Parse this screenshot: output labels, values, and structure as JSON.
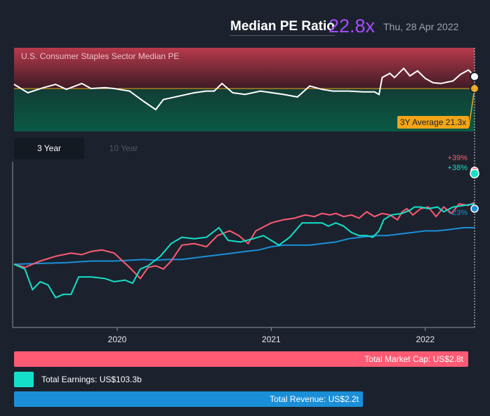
{
  "header": {
    "title": "Median PE Ratio",
    "value": "22.8x",
    "date": "Thu, 28 Apr 2022"
  },
  "pe_panel": {
    "sector_label": "U.S. Consumer Staples Sector Median PE",
    "average_label": "3Y Average 21.3x"
  },
  "tabs": {
    "active": "3 Year",
    "inactive": "10 Year"
  },
  "colors": {
    "market_cap": "#ff5a73",
    "earnings": "#14e0c9",
    "revenue": "#1a8fd8",
    "pe_line": "#ffffff",
    "average": "#f2a516",
    "accent": "#a64dff"
  },
  "chart_data": [
    {
      "type": "line",
      "title": "Median PE Ratio",
      "series": [
        {
          "name": "U.S. Consumer Staples Sector Median PE",
          "points": [
            [
              2019.33,
              21.8
            ],
            [
              2019.42,
              20.8
            ],
            [
              2019.52,
              21.4
            ],
            [
              2019.6,
              21.8
            ],
            [
              2019.67,
              21.2
            ],
            [
              2019.77,
              21.9
            ],
            [
              2019.83,
              21.3
            ],
            [
              2019.92,
              21.4
            ],
            [
              2019.98,
              21.3
            ],
            [
              2020.08,
              21.0
            ],
            [
              2020.17,
              19.8
            ],
            [
              2020.25,
              18.8
            ],
            [
              2020.3,
              20.0
            ],
            [
              2020.4,
              20.4
            ],
            [
              2020.5,
              20.8
            ],
            [
              2020.58,
              21.0
            ],
            [
              2020.63,
              21.0
            ],
            [
              2020.68,
              21.9
            ],
            [
              2020.75,
              20.8
            ],
            [
              2020.83,
              20.6
            ],
            [
              2020.93,
              21.0
            ],
            [
              2021.08,
              20.6
            ],
            [
              2021.17,
              20.3
            ],
            [
              2021.25,
              21.6
            ],
            [
              2021.33,
              21.2
            ],
            [
              2021.4,
              21.0
            ],
            [
              2021.5,
              21.0
            ],
            [
              2021.6,
              20.9
            ],
            [
              2021.67,
              20.9
            ],
            [
              2021.7,
              20.6
            ],
            [
              2021.72,
              22.6
            ],
            [
              2021.77,
              23.1
            ],
            [
              2021.8,
              22.6
            ],
            [
              2021.86,
              23.7
            ],
            [
              2021.9,
              22.8
            ],
            [
              2021.95,
              23.4
            ],
            [
              2022.0,
              22.5
            ],
            [
              2022.05,
              22.0
            ],
            [
              2022.1,
              21.9
            ],
            [
              2022.18,
              22.2
            ],
            [
              2022.23,
              23.0
            ],
            [
              2022.28,
              23.5
            ],
            [
              2022.32,
              22.8
            ]
          ]
        },
        {
          "name": "3Y Average",
          "value": 21.3
        }
      ]
    },
    {
      "type": "line",
      "x_ticks": [
        "2020",
        "2021",
        "2022"
      ],
      "ylabel": "",
      "series": [
        {
          "name": "Total Market Cap",
          "end_label": "+39%",
          "points": [
            [
              2019.33,
              0
            ],
            [
              2019.4,
              -2
            ],
            [
              2019.5,
              2
            ],
            [
              2019.6,
              5
            ],
            [
              2019.7,
              7
            ],
            [
              2019.77,
              6
            ],
            [
              2019.83,
              8
            ],
            [
              2019.9,
              9
            ],
            [
              2019.98,
              7
            ],
            [
              2020.08,
              -2
            ],
            [
              2020.15,
              -9
            ],
            [
              2020.2,
              -2
            ],
            [
              2020.25,
              -1
            ],
            [
              2020.3,
              -3
            ],
            [
              2020.35,
              2
            ],
            [
              2020.42,
              12
            ],
            [
              2020.5,
              13
            ],
            [
              2020.58,
              11
            ],
            [
              2020.65,
              18
            ],
            [
              2020.73,
              21
            ],
            [
              2020.79,
              18
            ],
            [
              2020.85,
              13
            ],
            [
              2020.9,
              21
            ],
            [
              2021.0,
              26
            ],
            [
              2021.08,
              28
            ],
            [
              2021.15,
              29
            ],
            [
              2021.22,
              31
            ],
            [
              2021.28,
              30
            ],
            [
              2021.33,
              32
            ],
            [
              2021.38,
              31
            ],
            [
              2021.42,
              32
            ],
            [
              2021.47,
              30
            ],
            [
              2021.52,
              31
            ],
            [
              2021.57,
              29
            ],
            [
              2021.62,
              33
            ],
            [
              2021.67,
              30
            ],
            [
              2021.72,
              32
            ],
            [
              2021.77,
              31
            ],
            [
              2021.82,
              28
            ],
            [
              2021.85,
              33
            ],
            [
              2021.88,
              35
            ],
            [
              2021.92,
              31
            ],
            [
              2021.97,
              35
            ],
            [
              2022.02,
              36
            ],
            [
              2022.07,
              30
            ],
            [
              2022.12,
              36
            ],
            [
              2022.17,
              32
            ],
            [
              2022.22,
              38
            ],
            [
              2022.28,
              37
            ],
            [
              2022.32,
              39
            ]
          ]
        },
        {
          "name": "Total Earnings",
          "end_label": "+38%",
          "points": [
            [
              2019.33,
              0
            ],
            [
              2019.4,
              -3
            ],
            [
              2019.45,
              -16
            ],
            [
              2019.5,
              -11
            ],
            [
              2019.55,
              -13
            ],
            [
              2019.6,
              -21
            ],
            [
              2019.65,
              -19
            ],
            [
              2019.7,
              -19
            ],
            [
              2019.75,
              -8
            ],
            [
              2019.83,
              -8
            ],
            [
              2019.92,
              -9
            ],
            [
              2019.98,
              -11
            ],
            [
              2020.05,
              -10
            ],
            [
              2020.1,
              -12
            ],
            [
              2020.15,
              -3
            ],
            [
              2020.2,
              -1
            ],
            [
              2020.28,
              5
            ],
            [
              2020.35,
              13
            ],
            [
              2020.42,
              17
            ],
            [
              2020.5,
              16
            ],
            [
              2020.58,
              17
            ],
            [
              2020.66,
              23
            ],
            [
              2020.72,
              15
            ],
            [
              2020.8,
              14
            ],
            [
              2020.88,
              16
            ],
            [
              2020.95,
              18
            ],
            [
              2021.0,
              15
            ],
            [
              2021.05,
              12
            ],
            [
              2021.12,
              17
            ],
            [
              2021.2,
              26
            ],
            [
              2021.27,
              26
            ],
            [
              2021.33,
              26
            ],
            [
              2021.37,
              24
            ],
            [
              2021.42,
              26
            ],
            [
              2021.47,
              24
            ],
            [
              2021.52,
              20
            ],
            [
              2021.57,
              18
            ],
            [
              2021.62,
              18
            ],
            [
              2021.66,
              17
            ],
            [
              2021.7,
              21
            ],
            [
              2021.73,
              28
            ],
            [
              2021.78,
              31
            ],
            [
              2021.85,
              32
            ],
            [
              2021.9,
              34
            ],
            [
              2021.93,
              36
            ],
            [
              2021.97,
              36
            ],
            [
              2022.02,
              35
            ],
            [
              2022.08,
              36
            ],
            [
              2022.12,
              33
            ],
            [
              2022.18,
              36
            ],
            [
              2022.25,
              37
            ],
            [
              2022.32,
              38
            ]
          ]
        },
        {
          "name": "Total Revenue",
          "end_label": "+23%",
          "points": [
            [
              2019.33,
              0
            ],
            [
              2019.5,
              0.5
            ],
            [
              2019.67,
              1
            ],
            [
              2019.83,
              2
            ],
            [
              2019.98,
              2
            ],
            [
              2020.08,
              2.5
            ],
            [
              2020.17,
              3
            ],
            [
              2020.25,
              2.5
            ],
            [
              2020.33,
              3
            ],
            [
              2020.42,
              3
            ],
            [
              2020.5,
              4
            ],
            [
              2020.58,
              5
            ],
            [
              2020.67,
              6
            ],
            [
              2020.75,
              7
            ],
            [
              2020.83,
              8
            ],
            [
              2020.92,
              9
            ],
            [
              2021.0,
              11
            ],
            [
              2021.08,
              12
            ],
            [
              2021.17,
              12
            ],
            [
              2021.25,
              12
            ],
            [
              2021.33,
              13
            ],
            [
              2021.42,
              14
            ],
            [
              2021.5,
              16
            ],
            [
              2021.58,
              17
            ],
            [
              2021.67,
              18
            ],
            [
              2021.75,
              18
            ],
            [
              2021.83,
              19
            ],
            [
              2021.92,
              20
            ],
            [
              2022.0,
              21
            ],
            [
              2022.08,
              21
            ],
            [
              2022.17,
              22
            ],
            [
              2022.25,
              23
            ],
            [
              2022.32,
              23
            ]
          ]
        }
      ]
    }
  ],
  "legend_bars": [
    {
      "name": "Total Market Cap",
      "label": "Total Market Cap: US$2.8t",
      "value": 2.8
    },
    {
      "name": "Total Earnings",
      "label": "Total Earnings: US$103.3b",
      "value": 0.1033
    },
    {
      "name": "Total Revenue",
      "label": "Total Revenue: US$2.2t",
      "value": 2.2
    }
  ]
}
